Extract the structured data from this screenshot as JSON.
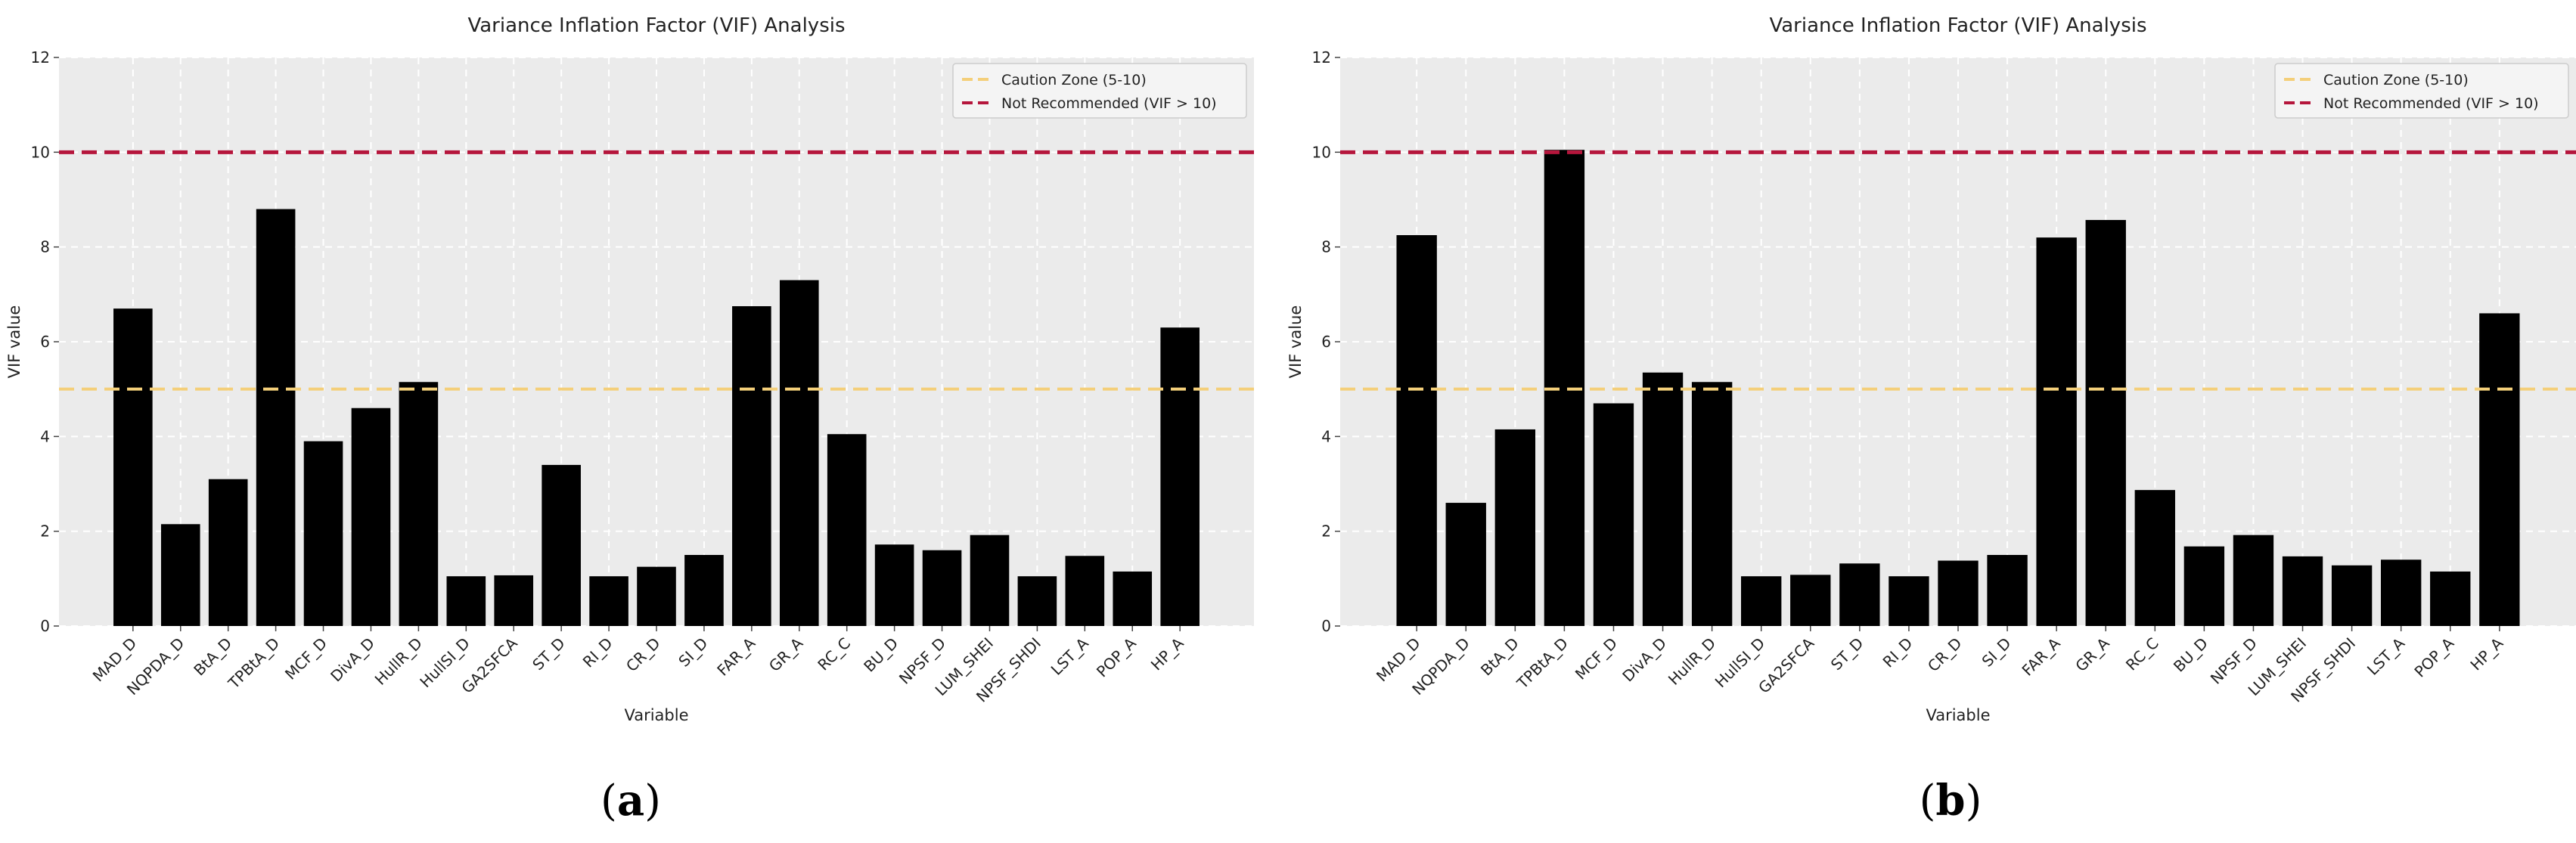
{
  "colors": {
    "plot_bg": "#ebebeb",
    "grid": "#ffffff",
    "bar": "#000000",
    "caution": "#f4cf7a",
    "not_recommended": "#b5163c"
  },
  "chart_data": [
    {
      "type": "bar",
      "panel_label": "a",
      "title": "Variance Inflation Factor (VIF) Analysis",
      "xlabel": "Variable",
      "ylabel": "VIF value",
      "ylim": [
        0,
        12
      ],
      "yticks": [
        0,
        2,
        4,
        6,
        8,
        10,
        12
      ],
      "categories": [
        "MAD_D",
        "NQPDA_D",
        "BtA_D",
        "TPBtA_D",
        "MCF_D",
        "DivA_D",
        "HullR_D",
        "HullSI_D",
        "GA2SFCA",
        "ST_D",
        "RI_D",
        "CR_D",
        "SI_D",
        "FAR_A",
        "GR_A",
        "RC_C",
        "BU_D",
        "NPSF_D",
        "LUM_SHEI",
        "NPSF_SHDI",
        "LST_A",
        "POP_A",
        "HP_A"
      ],
      "values": [
        6.7,
        2.15,
        3.1,
        8.8,
        3.9,
        4.6,
        5.15,
        1.05,
        1.07,
        3.4,
        1.05,
        1.25,
        1.5,
        6.75,
        7.3,
        4.05,
        1.72,
        1.6,
        1.92,
        1.05,
        1.48,
        1.15,
        6.3
      ],
      "reference_lines": [
        {
          "name": "Caution Zone (5-10)",
          "value": 5
        },
        {
          "name": "Not Recommended (VIF > 10)",
          "value": 10
        }
      ],
      "legend_position": "top-right"
    },
    {
      "type": "bar",
      "panel_label": "b",
      "title": "Variance Inflation Factor (VIF) Analysis",
      "xlabel": "Variable",
      "ylabel": "VIF value",
      "ylim": [
        0,
        12
      ],
      "yticks": [
        0,
        2,
        4,
        6,
        8,
        10,
        12
      ],
      "categories": [
        "MAD_D",
        "NQPDA_D",
        "BtA_D",
        "TPBtA_D",
        "MCF_D",
        "DivA_D",
        "HullR_D",
        "HullSI_D",
        "GA2SFCA",
        "ST_D",
        "RI_D",
        "CR_D",
        "SI_D",
        "FAR_A",
        "GR_A",
        "RC_C",
        "BU_D",
        "NPSF_D",
        "LUM_SHEI",
        "NPSF_SHDI",
        "LST_A",
        "POP_A",
        "HP_A"
      ],
      "values": [
        8.25,
        2.6,
        4.15,
        10.05,
        4.7,
        5.35,
        5.15,
        1.05,
        1.08,
        1.32,
        1.05,
        1.38,
        1.5,
        8.2,
        8.57,
        2.87,
        1.68,
        1.92,
        1.47,
        1.28,
        1.4,
        1.15,
        6.6
      ],
      "reference_lines": [
        {
          "name": "Caution Zone (5-10)",
          "value": 5
        },
        {
          "name": "Not Recommended (VIF > 10)",
          "value": 10
        }
      ],
      "legend_position": "top-right"
    }
  ]
}
